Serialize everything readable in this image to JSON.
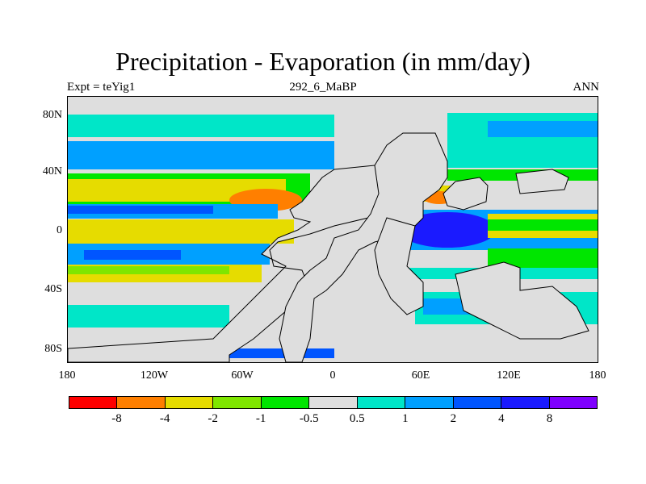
{
  "title": "Precipitation - Evaporation (in mm/day)",
  "subtitle_left": "Expt = teYig1",
  "subtitle_center": "292_6_MaBP",
  "subtitle_right": "ANN",
  "y_ticks": [
    "80N",
    "40N",
    "0",
    "40S",
    "80S"
  ],
  "x_ticks": [
    "180",
    "120W",
    "60W",
    "0",
    "60E",
    "120E",
    "180"
  ],
  "colorbar": {
    "colors": [
      "#ff0000",
      "#ff7f00",
      "#e6dc00",
      "#7fe600",
      "#00e600",
      "#dedede",
      "#00e6c8",
      "#00a0ff",
      "#0055ff",
      "#1a1aff",
      "#7f00ff"
    ],
    "labels": [
      "-8",
      "-4",
      "-2",
      "-1",
      "-0.5",
      "0.5",
      "1",
      "2",
      "4",
      "8"
    ]
  },
  "colors": {
    "land": "#dedede",
    "coast": "#000000",
    "background": "#ffffff"
  }
}
